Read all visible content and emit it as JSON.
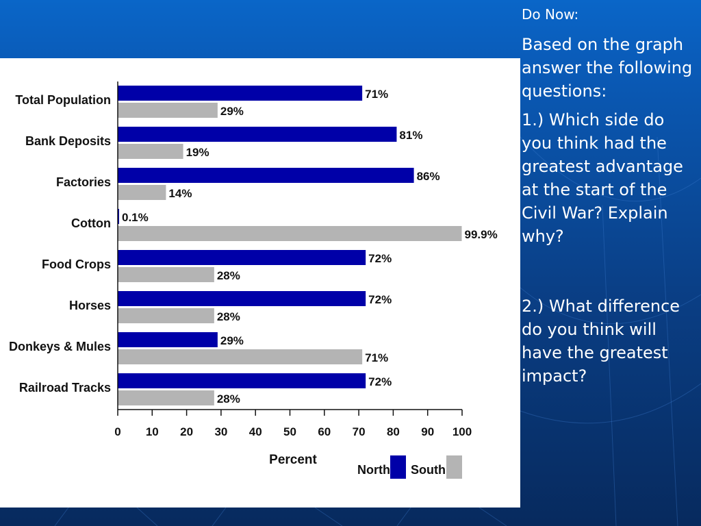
{
  "text": {
    "do_now": "Do Now:",
    "intro": "Based on the graph answer the following questions:",
    "q1": "1.) Which side do you think had the greatest advantage at the start of the Civil War?  Explain why?",
    "q2": "2.) What difference do you think will have the greatest impact?"
  },
  "colors": {
    "north": "#0000a8",
    "south": "#b4b4b4"
  },
  "chart_data": {
    "type": "bar",
    "orientation": "horizontal",
    "categories": [
      "Total Population",
      "Bank Deposits",
      "Factories",
      "Cotton",
      "Food Crops",
      "Horses",
      "Donkeys & Mules",
      "Railroad Tracks"
    ],
    "series": [
      {
        "name": "North",
        "values": [
          71,
          81,
          86,
          0.1,
          72,
          72,
          29,
          72
        ],
        "labels": [
          "71%",
          "81%",
          "86%",
          "0.1%",
          "72%",
          "72%",
          "29%",
          "72%"
        ]
      },
      {
        "name": "South",
        "values": [
          29,
          19,
          14,
          99.9,
          28,
          28,
          71,
          28
        ],
        "labels": [
          "29%",
          "19%",
          "14%",
          "99.9%",
          "28%",
          "28%",
          "71%",
          "28%"
        ]
      }
    ],
    "xlabel": "Percent",
    "xlim": [
      0,
      100
    ],
    "xticks": [
      "0",
      "10",
      "20",
      "30",
      "40",
      "50",
      "60",
      "70",
      "80",
      "90",
      "100"
    ],
    "legend_position": "bottom-right",
    "grid": false
  }
}
